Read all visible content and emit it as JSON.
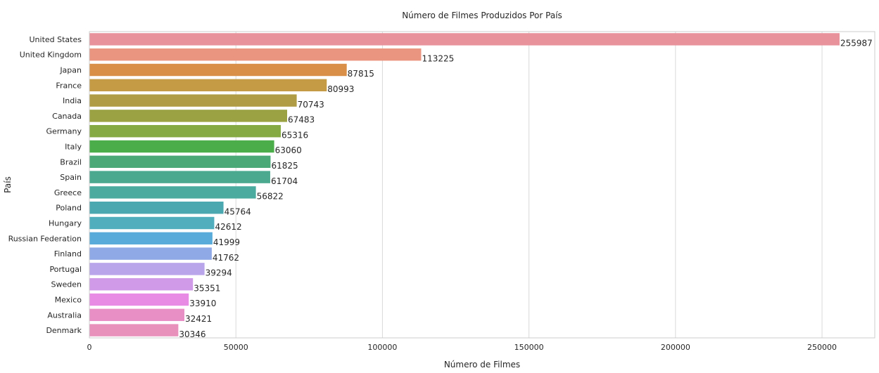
{
  "chart_data": {
    "type": "bar",
    "orientation": "horizontal",
    "title": "Número de Filmes Produzidos Por País",
    "xlabel": "Número de Filmes",
    "ylabel": "País",
    "xlim": [
      0,
      268000
    ],
    "xticks": [
      0,
      50000,
      100000,
      150000,
      200000,
      250000
    ],
    "grid": true,
    "categories": [
      "United States",
      "United Kingdom",
      "Japan",
      "France",
      "India",
      "Canada",
      "Germany",
      "Italy",
      "Brazil",
      "Spain",
      "Greece",
      "Poland",
      "Hungary",
      "Russian Federation",
      "Finland",
      "Portugal",
      "Sweden",
      "Mexico",
      "Australia",
      "Denmark"
    ],
    "values": [
      255987,
      113225,
      87815,
      80993,
      70743,
      67483,
      65316,
      63060,
      61825,
      61704,
      56822,
      45764,
      42612,
      41999,
      41762,
      39294,
      35351,
      33910,
      32421,
      30346
    ],
    "colors": [
      "#e8939c",
      "#e99580",
      "#d98f48",
      "#c69b45",
      "#b09c44",
      "#9ba244",
      "#85a943",
      "#4aad49",
      "#4ba978",
      "#4aa98f",
      "#4bab9f",
      "#4ca8b0",
      "#50aebd",
      "#59abd9",
      "#8fa8e6",
      "#b8a5ea",
      "#d19ae8",
      "#e88be5",
      "#e890c6",
      "#e891bb"
    ]
  }
}
